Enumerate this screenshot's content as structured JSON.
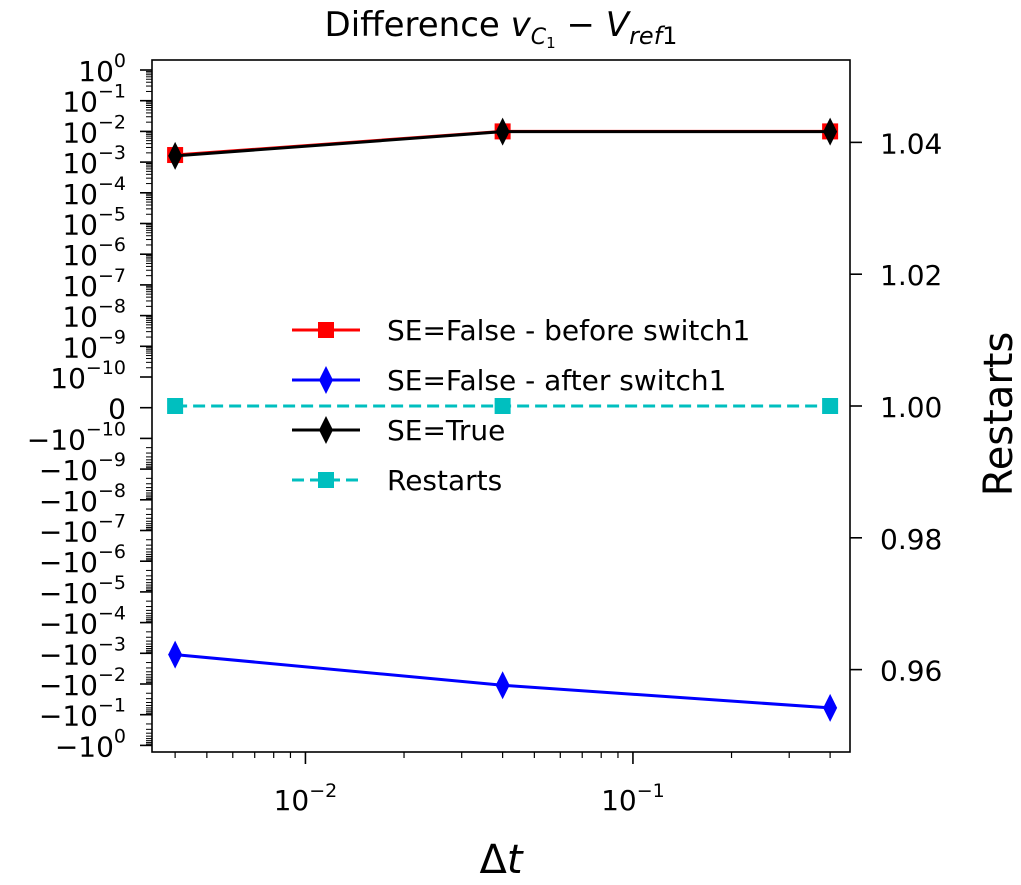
{
  "chart_data": {
    "type": "line",
    "title": {
      "prefix": "Difference ",
      "v": "v",
      "v_sub": "C",
      "v_subsub": "1",
      "minus": " − ",
      "V": "V",
      "V_sub": "ref",
      "V_sub2": "1"
    },
    "xlabel": {
      "delta": "Δ",
      "t": "t"
    },
    "ylabel_right": "Restarts",
    "x_scale": "log",
    "xlim": [
      0.0034,
      0.46
    ],
    "x_ticks": [
      {
        "value": 0.01,
        "base": "10",
        "exp": "−2"
      },
      {
        "value": 0.1,
        "base": "10",
        "exp": "−1"
      }
    ],
    "y_left_scale": "symlog",
    "y_left_ticks": [
      {
        "base": "10",
        "exp": "0"
      },
      {
        "base": "10",
        "exp": "−1"
      },
      {
        "base": "10",
        "exp": "−2"
      },
      {
        "base": "10",
        "exp": "−3"
      },
      {
        "base": "10",
        "exp": "−4"
      },
      {
        "base": "10",
        "exp": "−5"
      },
      {
        "base": "10",
        "exp": "−6"
      },
      {
        "base": "10",
        "exp": "−7"
      },
      {
        "base": "10",
        "exp": "−8"
      },
      {
        "base": "10",
        "exp": "−9"
      },
      {
        "base": "10",
        "exp": "−10"
      },
      {
        "base": "0",
        "exp": ""
      },
      {
        "base": "−10",
        "exp": "−10"
      },
      {
        "base": "−10",
        "exp": "−9"
      },
      {
        "base": "−10",
        "exp": "−8"
      },
      {
        "base": "−10",
        "exp": "−7"
      },
      {
        "base": "−10",
        "exp": "−6"
      },
      {
        "base": "−10",
        "exp": "−5"
      },
      {
        "base": "−10",
        "exp": "−4"
      },
      {
        "base": "−10",
        "exp": "−3"
      },
      {
        "base": "−10",
        "exp": "−2"
      },
      {
        "base": "−10",
        "exp": "−1"
      },
      {
        "base": "−10",
        "exp": "0"
      }
    ],
    "y_right_ylim": [
      0.9475,
      1.0525
    ],
    "y_right_ticks": [
      {
        "value": 0.96,
        "label": "0.96"
      },
      {
        "value": 0.98,
        "label": "0.98"
      },
      {
        "value": 1.0,
        "label": "1.00"
      },
      {
        "value": 1.02,
        "label": "1.02"
      },
      {
        "value": 1.04,
        "label": "1.04"
      }
    ],
    "x": [
      0.004,
      0.04,
      0.4
    ],
    "series": [
      {
        "name": "SE=False - before switch1",
        "axis": "left",
        "color": "#ff0000",
        "marker": "square",
        "dash": false,
        "values": [
          0.0017,
          0.01,
          0.01
        ]
      },
      {
        "name": "SE=False - after switch1",
        "axis": "left",
        "color": "#0000ff",
        "marker": "diamond",
        "dash": false,
        "values": [
          -0.0011,
          -0.011,
          -0.06
        ]
      },
      {
        "name": "SE=True",
        "axis": "left",
        "color": "#000000",
        "marker": "diamond",
        "dash": false,
        "values": [
          0.0016,
          0.0098,
          0.0098
        ]
      },
      {
        "name": "Restarts",
        "axis": "right",
        "color": "#00bfbf",
        "marker": "square",
        "dash": true,
        "values": [
          1.0,
          1.0,
          1.0
        ]
      }
    ],
    "legend_position": "center"
  }
}
